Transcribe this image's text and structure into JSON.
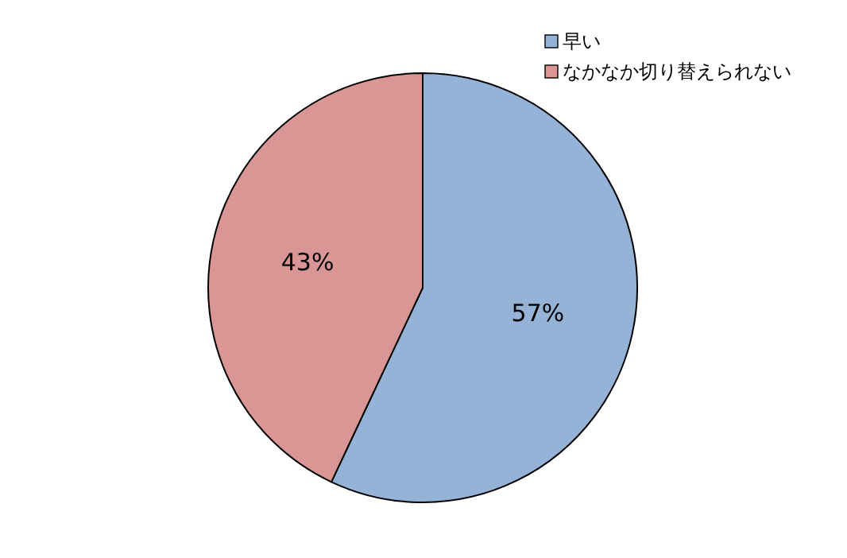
{
  "chart_data": {
    "type": "pie",
    "categories": [
      "早い",
      "なかなか切り替えられない"
    ],
    "values": [
      57,
      43
    ],
    "colors": [
      "#95b3d7",
      "#d99694"
    ],
    "value_labels": [
      "57%",
      "43%"
    ],
    "legend": "top right"
  }
}
